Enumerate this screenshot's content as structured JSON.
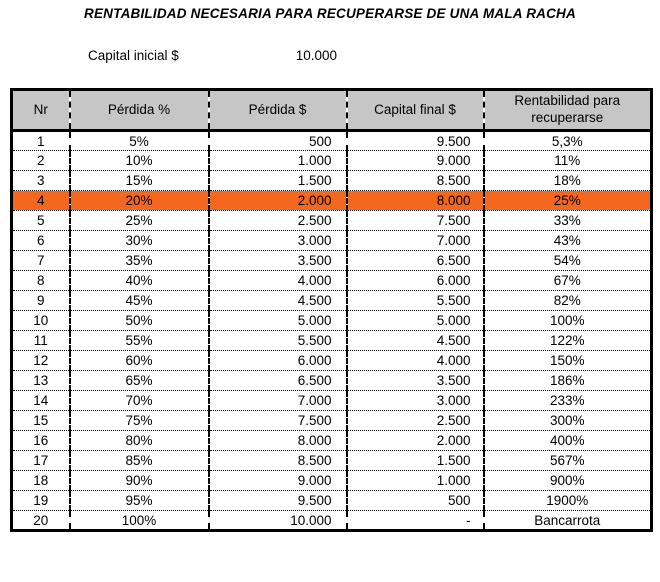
{
  "title": "RENTABILIDAD NECESARIA PARA RECUPERARSE DE UNA MALA RACHA",
  "capital": {
    "label": "Capital inicial $",
    "value": "10.000"
  },
  "table": {
    "columns": [
      "Nr",
      "Pérdida %",
      "Pérdida $",
      "Capital final $",
      "Rentabilidad para recuperarse"
    ],
    "highlight_row_nr": "4",
    "rows": [
      [
        "1",
        "5%",
        "500",
        "9.500",
        "5,3%"
      ],
      [
        "2",
        "10%",
        "1.000",
        "9.000",
        "11%"
      ],
      [
        "3",
        "15%",
        "1.500",
        "8.500",
        "18%"
      ],
      [
        "4",
        "20%",
        "2.000",
        "8.000",
        "25%"
      ],
      [
        "5",
        "25%",
        "2.500",
        "7.500",
        "33%"
      ],
      [
        "6",
        "30%",
        "3.000",
        "7.000",
        "43%"
      ],
      [
        "7",
        "35%",
        "3.500",
        "6.500",
        "54%"
      ],
      [
        "8",
        "40%",
        "4.000",
        "6.000",
        "67%"
      ],
      [
        "9",
        "45%",
        "4.500",
        "5.500",
        "82%"
      ],
      [
        "10",
        "50%",
        "5.000",
        "5.000",
        "100%"
      ],
      [
        "11",
        "55%",
        "5.500",
        "4.500",
        "122%"
      ],
      [
        "12",
        "60%",
        "6.000",
        "4.000",
        "150%"
      ],
      [
        "13",
        "65%",
        "6.500",
        "3.500",
        "186%"
      ],
      [
        "14",
        "70%",
        "7.000",
        "3.000",
        "233%"
      ],
      [
        "15",
        "75%",
        "7.500",
        "2.500",
        "300%"
      ],
      [
        "16",
        "80%",
        "8.000",
        "2.000",
        "400%"
      ],
      [
        "17",
        "85%",
        "8.500",
        "1.500",
        "567%"
      ],
      [
        "18",
        "90%",
        "9.000",
        "1.000",
        "900%"
      ],
      [
        "19",
        "95%",
        "9.500",
        "500",
        "1900%"
      ],
      [
        "20",
        "100%",
        "10.000",
        "-",
        "Bancarrota"
      ]
    ]
  },
  "colors": {
    "header_bg": "#C6C6C6",
    "highlight": "#F4671F",
    "border": "#000000"
  }
}
